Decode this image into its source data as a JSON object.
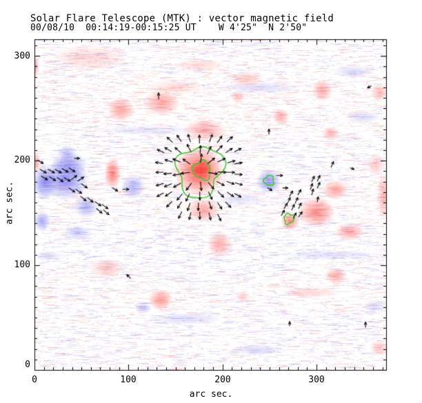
{
  "header": {
    "title": "Solar Flare Telescope (MTK) : vector magnetic field",
    "subtitle": "00/08/10  00:14:19-00:15:25 UT    W 4'25\"  N 2'50\""
  },
  "chart_data": {
    "type": "heatmap",
    "title": "Solar Flare Telescope (MTK) : vector magnetic field",
    "subtitle": "00/08/10  00:14:19-00:15:25 UT    W 4'25\"  N 2'50\"",
    "xlabel": "arc sec.",
    "ylabel": "arc sec.",
    "xlim": [
      0,
      374
    ],
    "ylim": [
      0,
      316
    ],
    "xticks": [
      0,
      100,
      200,
      300
    ],
    "yticks": [
      0,
      100,
      200,
      300
    ],
    "xtick_labels": [
      "0",
      "100",
      "200",
      "300"
    ],
    "ytick_labels": [
      "0",
      "100",
      "200",
      "300"
    ],
    "minor_tick_interval": 10,
    "grid": false,
    "legend": "none",
    "colors": {
      "positive_polarity": "#f83e34",
      "negative_polarity": "#6666e8",
      "noise_pink": "#ec7878",
      "noise_blue": "#7878e1",
      "noise_purple": "#a57dcd",
      "contour": "#2fcc1f",
      "arrow": "#000000",
      "axis": "#000000",
      "background": "#ffffff"
    },
    "positive_blobs": [
      [
        175,
        190,
        27,
        24,
        0.92
      ],
      [
        178,
        192,
        11,
        10,
        1.0
      ],
      [
        180,
        153,
        18,
        12,
        0.5
      ],
      [
        83,
        188,
        9,
        15,
        0.75
      ],
      [
        181,
        229,
        24,
        11,
        0.45
      ],
      [
        262,
        242,
        9,
        8,
        0.5
      ],
      [
        300,
        151,
        20,
        15,
        0.65
      ],
      [
        320,
        172,
        14,
        10,
        0.5
      ],
      [
        272,
        142,
        10,
        9,
        0.65
      ],
      [
        335,
        132,
        16,
        9,
        0.5
      ],
      [
        372,
        166,
        8,
        22,
        0.45
      ],
      [
        306,
        267,
        11,
        11,
        0.5
      ],
      [
        315,
        226,
        9,
        7,
        0.45
      ],
      [
        367,
        265,
        9,
        9,
        0.4
      ],
      [
        1,
        290,
        4,
        11,
        0.5
      ],
      [
        92,
        249,
        15,
        12,
        0.5
      ],
      [
        135,
        255,
        20,
        12,
        0.55
      ],
      [
        2,
        198,
        4,
        10,
        0.5
      ],
      [
        59,
        298,
        42,
        13,
        0.22
      ],
      [
        176,
        291,
        28,
        7,
        0.22
      ],
      [
        225,
        278,
        18,
        8,
        0.28
      ],
      [
        134,
        67,
        13,
        10,
        0.6
      ],
      [
        320,
        90,
        12,
        8,
        0.5
      ],
      [
        197,
        120,
        14,
        13,
        0.45
      ],
      [
        77,
        97,
        18,
        10,
        0.32
      ],
      [
        367,
        21,
        11,
        8,
        0.32
      ],
      [
        216,
        261,
        8,
        6,
        0.35
      ],
      [
        222,
        70,
        7,
        5,
        0.3
      ],
      [
        363,
        196,
        10,
        12,
        0.28
      ],
      [
        293,
        74,
        32,
        6,
        0.22
      ],
      [
        150,
        270,
        33,
        8,
        0.2
      ]
    ],
    "negative_blobs": [
      [
        33,
        182,
        25,
        20,
        0.8
      ],
      [
        11,
        179,
        13,
        17,
        0.8
      ],
      [
        37,
        196,
        20,
        12,
        0.65
      ],
      [
        55,
        156,
        14,
        11,
        0.55
      ],
      [
        35,
        207,
        10,
        8,
        0.5
      ],
      [
        8,
        142,
        9,
        10,
        0.6
      ],
      [
        105,
        175,
        13,
        12,
        0.55
      ],
      [
        249,
        180,
        13,
        12,
        0.78
      ],
      [
        240,
        270,
        45,
        6,
        0.25
      ],
      [
        116,
        59,
        9,
        5,
        0.45
      ],
      [
        46,
        131,
        16,
        7,
        0.4
      ],
      [
        339,
        285,
        22,
        6,
        0.28
      ],
      [
        350,
        242,
        20,
        6,
        0.28
      ],
      [
        161,
        49,
        40,
        6,
        0.28
      ],
      [
        238,
        19,
        30,
        5,
        0.28
      ],
      [
        15,
        109,
        14,
        5,
        0.3
      ],
      [
        363,
        61,
        14,
        6,
        0.28
      ],
      [
        220,
        163,
        28,
        7,
        0.2
      ],
      [
        120,
        229,
        55,
        5,
        0.2
      ],
      [
        315,
        110,
        55,
        5,
        0.22
      ]
    ],
    "contours": [
      [
        175.5,
        190,
        24,
        7
      ],
      [
        178,
        191,
        9,
        3
      ],
      [
        249.5,
        181,
        5,
        5
      ],
      [
        270.5,
        144.5,
        5,
        9
      ]
    ],
    "arrow_fan": {
      "cx": 175.5,
      "cy": 190,
      "step": 9.6,
      "xmin": 137,
      "xmax": 217,
      "ymin": 150,
      "ymax": 226,
      "rmin": 7.5,
      "rmax": 46
    },
    "arrows": [
      [
        3.7,
        200.3,
        -30,
        6
      ],
      [
        5.9,
        191.7,
        -30,
        7
      ],
      [
        14.7,
        191.7,
        -30,
        7
      ],
      [
        22,
        191.7,
        -30,
        7
      ],
      [
        29.3,
        192.4,
        -30,
        7
      ],
      [
        36.7,
        193,
        -32,
        7
      ],
      [
        7.3,
        185.1,
        -30,
        7
      ],
      [
        16.1,
        184.5,
        -32,
        7
      ],
      [
        24.2,
        183.8,
        -35,
        7
      ],
      [
        31.5,
        183.8,
        -30,
        7
      ],
      [
        38.9,
        181.8,
        35,
        7
      ],
      [
        46.2,
        180.5,
        35,
        7
      ],
      [
        42.5,
        202.2,
        0,
        5
      ],
      [
        49.9,
        177.9,
        -35,
        7
      ],
      [
        36.7,
        173.9,
        -35,
        7
      ],
      [
        44,
        172.6,
        -35,
        7
      ],
      [
        49.1,
        166,
        -40,
        7
      ],
      [
        56.5,
        164.7,
        -40,
        7
      ],
      [
        64.5,
        160.7,
        -35,
        7
      ],
      [
        71.9,
        158.1,
        -35,
        7
      ],
      [
        66,
        154.2,
        -40,
        7
      ],
      [
        73.4,
        152.8,
        -40,
        7
      ],
      [
        82.9,
        173.9,
        -30,
        6
      ],
      [
        93.9,
        172.6,
        0,
        6
      ],
      [
        257.5,
        185.8,
        0,
        6
      ],
      [
        248,
        173.9,
        -30,
        5
      ],
      [
        264.1,
        173.9,
        0,
        5
      ],
      [
        315.4,
        193.7,
        65,
        6
      ],
      [
        294.9,
        179.8,
        65,
        6
      ],
      [
        300.8,
        180.5,
        65,
        6
      ],
      [
        293.4,
        172.6,
        70,
        6
      ],
      [
        300.8,
        173.9,
        65,
        6
      ],
      [
        294.9,
        167.3,
        75,
        6
      ],
      [
        271.4,
        166,
        60,
        6
      ],
      [
        280.2,
        167.3,
        60,
        6
      ],
      [
        269.2,
        159.4,
        65,
        6
      ],
      [
        277.3,
        159.4,
        65,
        6
      ],
      [
        265.5,
        154.2,
        60,
        6
      ],
      [
        273.6,
        152.8,
        65,
        6
      ],
      [
        280.9,
        154.2,
        65,
        6
      ],
      [
        262.6,
        147.6,
        60,
        6
      ],
      [
        275.1,
        145,
        60,
        6
      ],
      [
        280.9,
        146.3,
        55,
        6
      ],
      [
        300.8,
        160.7,
        80,
        5
      ],
      [
        132,
        258.9,
        90,
        6
      ],
      [
        249.4,
        225.3,
        90,
        5
      ],
      [
        352.1,
        40.8,
        90,
        5
      ],
      [
        271.4,
        42.2,
        90,
        4
      ],
      [
        102,
        87.6,
        135,
        5
      ],
      [
        358,
        271.4,
        -150,
        4
      ],
      [
        335.9,
        193,
        -20,
        4
      ]
    ]
  }
}
